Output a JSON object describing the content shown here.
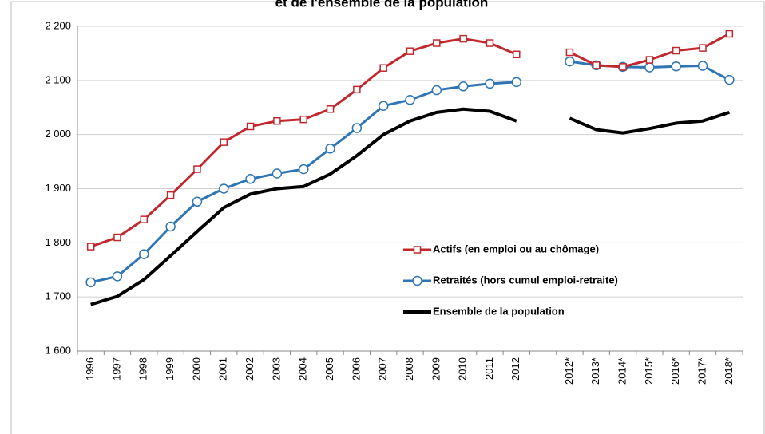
{
  "chart_data": {
    "type": "line",
    "title": "et de l'ensemble de la population",
    "categories": [
      "1996",
      "1997",
      "1998",
      "1999",
      "2000",
      "2001",
      "2002",
      "2003",
      "2004",
      "2005",
      "2006",
      "2007",
      "2008",
      "2009",
      "2010",
      "2011",
      "2012",
      null,
      "2012*",
      "2013*",
      "2014*",
      "2015*",
      "2016*",
      "2017*",
      "2018*"
    ],
    "series": [
      {
        "name": "Actifs (en emploi ou au chômage)",
        "color": "#c0282d",
        "marker": "square",
        "values": [
          1793,
          1810,
          1843,
          1888,
          1936,
          1986,
          2015,
          2025,
          2028,
          2047,
          2083,
          2123,
          2154,
          2169,
          2177,
          2169,
          2148,
          null,
          2152,
          2128,
          2125,
          2138,
          2155,
          2160,
          2186
        ]
      },
      {
        "name": "Retraités (hors cumul emploi-retraite)",
        "color": "#2e75b6",
        "marker": "circle",
        "values": [
          1727,
          1738,
          1779,
          1830,
          1876,
          1900,
          1918,
          1928,
          1936,
          1974,
          2012,
          2053,
          2064,
          2082,
          2089,
          2094,
          2097,
          null,
          2135,
          2128,
          2125,
          2124,
          2126,
          2127,
          2101
        ]
      },
      {
        "name": "Ensemble de la population",
        "color": "#000000",
        "marker": "none",
        "values": [
          1686,
          1701,
          1732,
          1776,
          1821,
          1865,
          1890,
          1900,
          1904,
          1927,
          1961,
          2000,
          2025,
          2041,
          2047,
          2043,
          2025,
          null,
          2030,
          2009,
          2003,
          2011,
          2021,
          2025,
          2041
        ]
      }
    ],
    "ylim": [
      1600,
      2200
    ],
    "yticks": [
      {
        "value": 1600,
        "label": "1 600"
      },
      {
        "value": 1700,
        "label": "1 700"
      },
      {
        "value": 1800,
        "label": "1 800"
      },
      {
        "value": 1900,
        "label": "1 900"
      },
      {
        "value": 2000,
        "label": "2 000"
      },
      {
        "value": 2100,
        "label": "2 100"
      },
      {
        "value": 2200,
        "label": "2 200"
      }
    ],
    "grid": true
  }
}
